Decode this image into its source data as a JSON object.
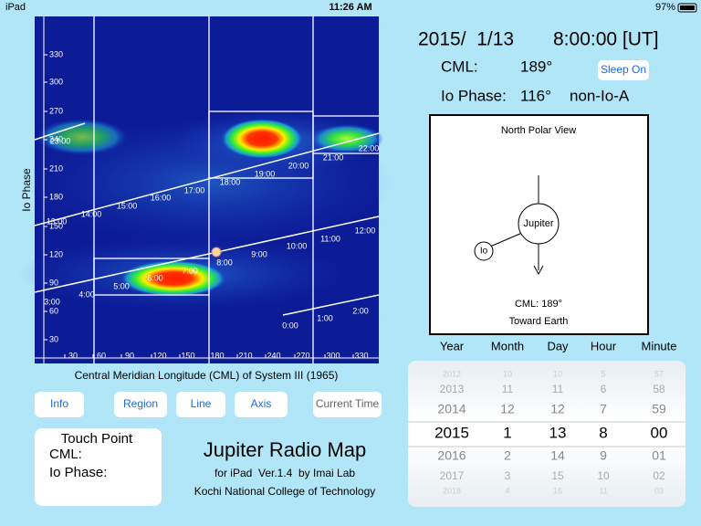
{
  "status_bar": {
    "device": "iPad",
    "time": "11:26 AM",
    "battery": "97%"
  },
  "map": {
    "y_axis_label": "Io Phase",
    "x_axis_label": "Central Meridian Longitude (CML) of System III (1965)",
    "y_ticks": [
      "330",
      "300",
      "270",
      "240",
      "210",
      "180",
      "150",
      "120",
      "90",
      "60",
      "30"
    ],
    "x_ticks": [
      "30",
      "60",
      "90",
      "120",
      "150",
      "180",
      "210",
      "240",
      "270",
      "300",
      "330"
    ],
    "time_labels": [
      "0:00",
      "1:00",
      "2:00",
      "3:00",
      "4:00",
      "5:00",
      "6:00",
      "7:00",
      "8:00",
      "9:00",
      "10:00",
      "11:00",
      "12:00",
      "13:00",
      "14:00",
      "15:00",
      "16:00",
      "17:00",
      "18:00",
      "19:00",
      "20:00",
      "21:00",
      "22:00",
      "23:00"
    ]
  },
  "info": {
    "date": "2015/  1/13",
    "time": "8:00:00 [UT]",
    "cml_label": "CML:",
    "cml_value": "189°",
    "sleep_button": "Sleep On",
    "io_phase_label": "Io Phase:",
    "io_phase_value": "116°",
    "region": "non-Io-A"
  },
  "polar_view": {
    "title": "North Polar View",
    "planet": "Jupiter",
    "moon": "Io",
    "cml": "CML: 189°",
    "direction": "Toward Earth"
  },
  "picker": {
    "headers": [
      "Year",
      "Month",
      "Day",
      "Hour",
      "Minute"
    ],
    "columns": [
      [
        "2012",
        "2013",
        "2014",
        "2015",
        "2016",
        "2017",
        "2018"
      ],
      [
        "10",
        "11",
        "12",
        "1",
        "2",
        "3",
        "4"
      ],
      [
        "10",
        "11",
        "12",
        "13",
        "14",
        "15",
        "16"
      ],
      [
        "5",
        "6",
        "7",
        "8",
        "9",
        "10",
        "11"
      ],
      [
        "57",
        "58",
        "59",
        "00",
        "01",
        "02",
        "03"
      ]
    ]
  },
  "buttons": [
    "Info",
    "Region",
    "Line",
    "Axis",
    "Current Time"
  ],
  "touch_point": {
    "title": "Touch Point",
    "cml_label": "CML:",
    "io_phase_label": "Io Phase:"
  },
  "app_info": {
    "title": "Jupiter Radio Map",
    "version": "for iPad  Ver.1.4  by Imai Lab",
    "institution": "Kochi National College of Technology"
  }
}
